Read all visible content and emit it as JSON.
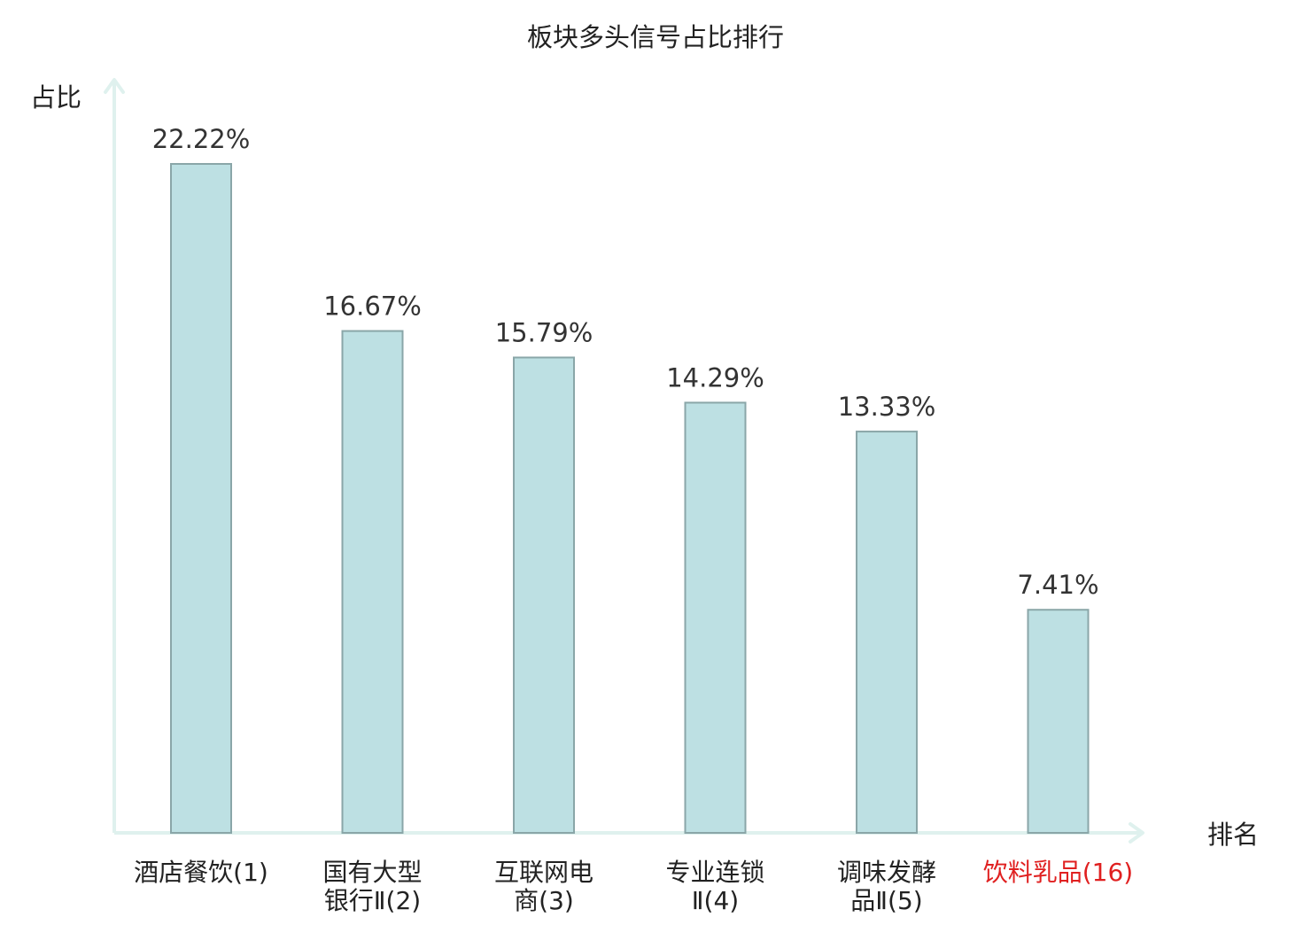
{
  "chart_data": {
    "type": "bar",
    "title": "板块多头信号占比排行",
    "ylabel": "占比",
    "xlabel": "排名",
    "categories": [
      [
        "酒店餐饮(1)"
      ],
      [
        "国有大型",
        "银行Ⅱ(2)"
      ],
      [
        "互联网电",
        "商(3)"
      ],
      [
        "专业连锁",
        "Ⅱ(4)"
      ],
      [
        "调味发酵",
        "品Ⅱ(5)"
      ],
      [
        "饮料乳品(16)"
      ]
    ],
    "values": [
      22.22,
      16.67,
      15.79,
      14.29,
      13.33,
      7.41
    ],
    "value_labels": [
      "22.22%",
      "16.67%",
      "15.79%",
      "14.29%",
      "13.33%",
      "7.41%"
    ],
    "highlight_index": 5,
    "ylim": [
      0,
      22.22
    ],
    "grid": false,
    "colors": {
      "bar_fill": "#bde0e3",
      "bar_stroke": "#8aa6a8",
      "axis": "#dff1ee",
      "text": "#333333",
      "highlight_text": "#e02020"
    }
  }
}
